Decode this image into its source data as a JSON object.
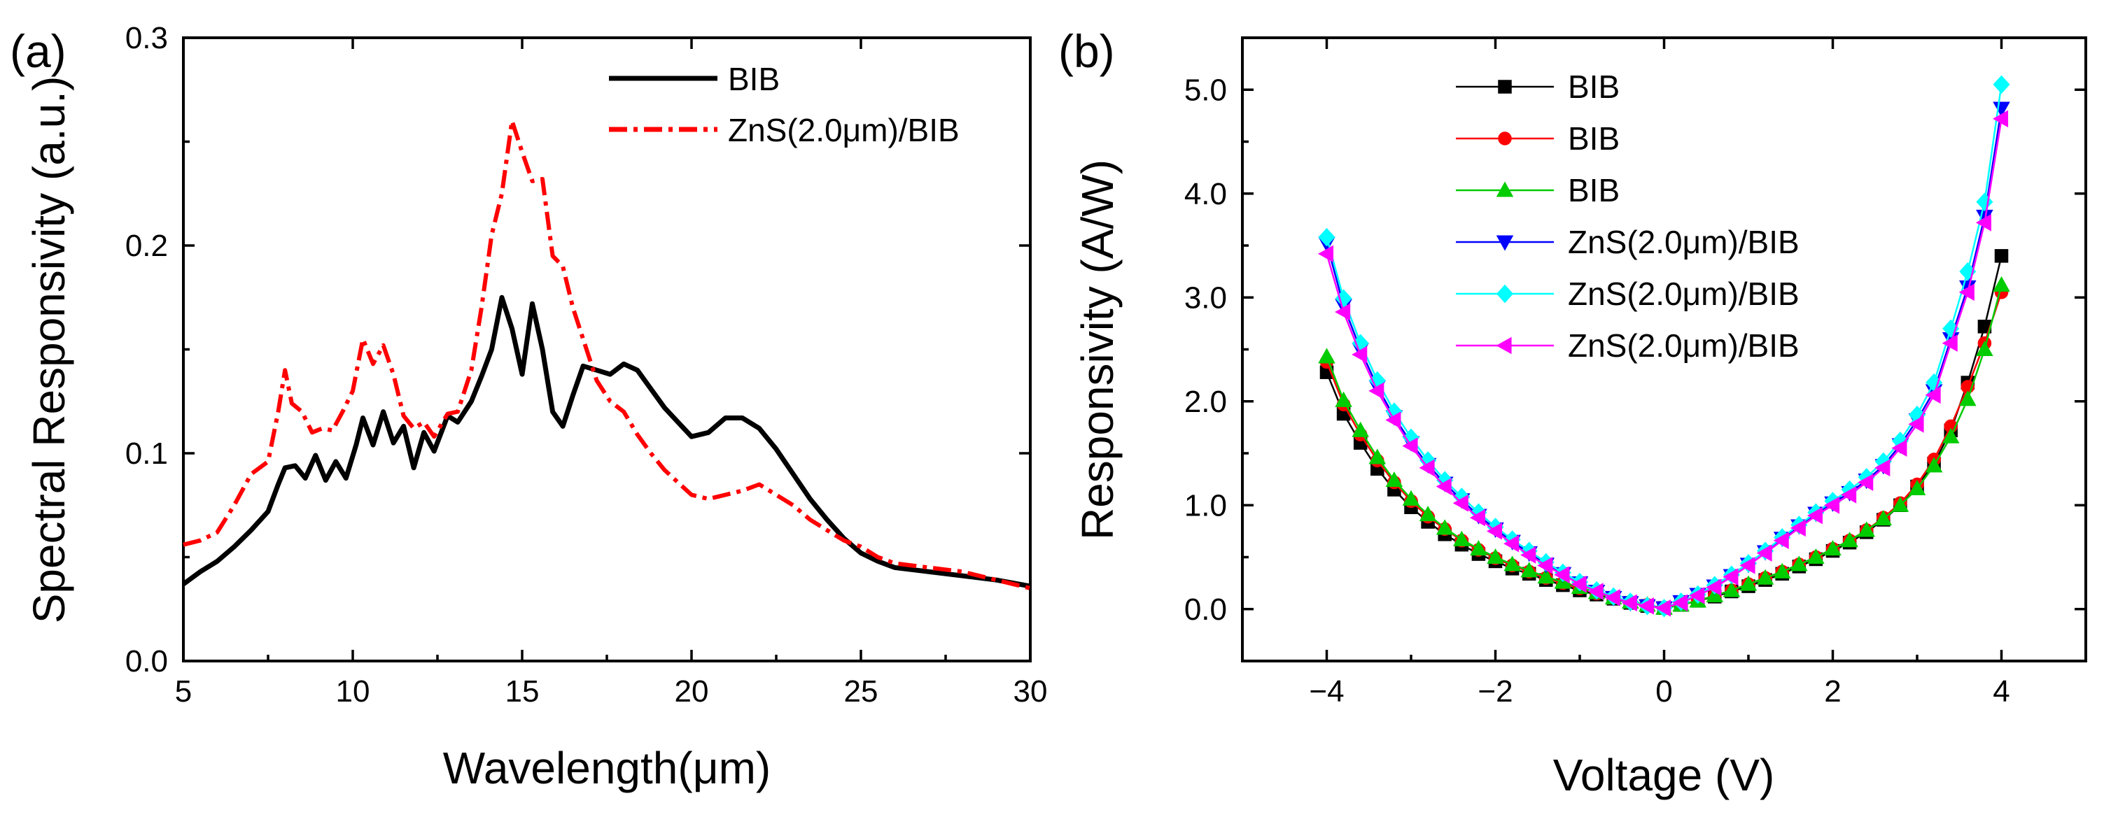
{
  "chart_data": [
    {
      "type": "line",
      "panel_label": "(a)",
      "xlabel": "Wavelength(μm)",
      "ylabel": "Spectral Responsivity (a.u.)",
      "xlim": [
        5,
        30
      ],
      "ylim": [
        0.0,
        0.3
      ],
      "xticks": [
        5,
        10,
        15,
        20,
        25,
        30
      ],
      "xtick_labels": [
        "5",
        "10",
        "15",
        "20",
        "25",
        "30"
      ],
      "yticks": [
        0.0,
        0.1,
        0.2,
        0.3
      ],
      "ytick_labels": [
        "0.0",
        "0.1",
        "0.2",
        "0.3"
      ],
      "legend_position": "top-right",
      "series": [
        {
          "name": "BIB",
          "color": "#000000",
          "style": "solid",
          "x": [
            5.0,
            5.5,
            6.0,
            6.5,
            7.0,
            7.5,
            7.8,
            8.0,
            8.3,
            8.6,
            8.9,
            9.2,
            9.5,
            9.8,
            10.1,
            10.3,
            10.6,
            10.9,
            11.2,
            11.5,
            11.8,
            12.1,
            12.4,
            12.8,
            13.1,
            13.5,
            13.8,
            14.1,
            14.4,
            14.7,
            15.0,
            15.3,
            15.6,
            15.9,
            16.2,
            16.5,
            16.8,
            17.2,
            17.6,
            18.0,
            18.4,
            18.8,
            19.2,
            19.6,
            20.0,
            20.5,
            21.0,
            21.5,
            22.0,
            22.5,
            23.0,
            23.5,
            24.0,
            24.5,
            25.0,
            25.5,
            26.0,
            27.0,
            28.0,
            29.0,
            30.0
          ],
          "values": [
            0.037,
            0.043,
            0.048,
            0.055,
            0.063,
            0.072,
            0.085,
            0.093,
            0.094,
            0.088,
            0.099,
            0.087,
            0.096,
            0.088,
            0.104,
            0.117,
            0.104,
            0.12,
            0.105,
            0.113,
            0.093,
            0.11,
            0.101,
            0.118,
            0.115,
            0.125,
            0.137,
            0.15,
            0.175,
            0.16,
            0.138,
            0.172,
            0.15,
            0.12,
            0.113,
            0.128,
            0.142,
            0.14,
            0.138,
            0.143,
            0.14,
            0.131,
            0.122,
            0.115,
            0.108,
            0.11,
            0.117,
            0.117,
            0.112,
            0.102,
            0.09,
            0.078,
            0.068,
            0.059,
            0.052,
            0.048,
            0.045,
            0.043,
            0.041,
            0.039,
            0.036
          ]
        },
        {
          "name": "ZnS(2.0μm)/BIB",
          "color": "#ff0000",
          "style": "dash-dot",
          "x": [
            5.0,
            5.5,
            6.0,
            6.5,
            7.0,
            7.5,
            7.8,
            8.0,
            8.2,
            8.5,
            8.8,
            9.1,
            9.4,
            9.7,
            10.0,
            10.3,
            10.6,
            10.9,
            11.2,
            11.5,
            11.8,
            12.1,
            12.4,
            12.8,
            13.1,
            13.5,
            13.8,
            14.1,
            14.4,
            14.7,
            15.0,
            15.3,
            15.6,
            15.9,
            16.2,
            16.5,
            16.8,
            17.2,
            17.6,
            18.0,
            18.4,
            18.8,
            19.2,
            19.6,
            20.0,
            20.5,
            21.0,
            21.5,
            22.0,
            22.5,
            23.0,
            23.5,
            24.0,
            24.5,
            25.0,
            25.5,
            26.0,
            27.0,
            28.0,
            29.0,
            30.0
          ],
          "values": [
            0.056,
            0.058,
            0.062,
            0.075,
            0.09,
            0.096,
            0.12,
            0.14,
            0.124,
            0.12,
            0.11,
            0.112,
            0.111,
            0.12,
            0.13,
            0.155,
            0.143,
            0.152,
            0.138,
            0.118,
            0.112,
            0.115,
            0.108,
            0.119,
            0.12,
            0.14,
            0.17,
            0.205,
            0.225,
            0.26,
            0.245,
            0.231,
            0.232,
            0.195,
            0.19,
            0.17,
            0.155,
            0.135,
            0.125,
            0.12,
            0.109,
            0.1,
            0.092,
            0.086,
            0.08,
            0.078,
            0.08,
            0.082,
            0.085,
            0.08,
            0.075,
            0.068,
            0.063,
            0.058,
            0.055,
            0.05,
            0.047,
            0.045,
            0.043,
            0.039,
            0.035
          ]
        }
      ]
    },
    {
      "type": "line",
      "panel_label": "(b)",
      "xlabel": "Voltage (V)",
      "ylabel": "Responsivity (A/W)",
      "xlim": [
        -5,
        5
      ],
      "ylim": [
        -0.5,
        5.5
      ],
      "xticks": [
        -4,
        -2,
        0,
        2,
        4
      ],
      "xtick_labels": [
        "−4",
        "−2",
        "0",
        "2",
        "4"
      ],
      "yticks": [
        0.0,
        1.0,
        2.0,
        3.0,
        4.0,
        5.0
      ],
      "ytick_labels": [
        "0.0",
        "1.0",
        "2.0",
        "3.0",
        "4.0",
        "5.0"
      ],
      "legend_position": "top-left",
      "x": [
        -4.0,
        -3.8,
        -3.6,
        -3.4,
        -3.2,
        -3.0,
        -2.8,
        -2.6,
        -2.4,
        -2.2,
        -2.0,
        -1.8,
        -1.6,
        -1.4,
        -1.2,
        -1.0,
        -0.8,
        -0.6,
        -0.4,
        -0.2,
        0.0,
        0.2,
        0.4,
        0.6,
        0.8,
        1.0,
        1.2,
        1.4,
        1.6,
        1.8,
        2.0,
        2.2,
        2.4,
        2.6,
        2.8,
        3.0,
        3.2,
        3.4,
        3.6,
        3.8,
        4.0
      ],
      "series": [
        {
          "name": "BIB",
          "color": "#000000",
          "marker": "square",
          "values": [
            2.28,
            1.88,
            1.6,
            1.35,
            1.15,
            0.98,
            0.84,
            0.72,
            0.62,
            0.53,
            0.46,
            0.39,
            0.34,
            0.28,
            0.23,
            0.18,
            0.14,
            0.1,
            0.06,
            0.03,
            0.01,
            0.04,
            0.08,
            0.12,
            0.17,
            0.22,
            0.28,
            0.34,
            0.41,
            0.48,
            0.56,
            0.64,
            0.74,
            0.86,
            1.0,
            1.18,
            1.4,
            1.72,
            2.18,
            2.72,
            3.4
          ]
        },
        {
          "name": "BIB",
          "color": "#ff0000",
          "marker": "circle",
          "values": [
            2.38,
            1.97,
            1.68,
            1.43,
            1.22,
            1.04,
            0.89,
            0.77,
            0.66,
            0.57,
            0.49,
            0.42,
            0.36,
            0.3,
            0.25,
            0.2,
            0.15,
            0.11,
            0.07,
            0.04,
            0.01,
            0.04,
            0.08,
            0.13,
            0.18,
            0.24,
            0.3,
            0.36,
            0.43,
            0.5,
            0.58,
            0.66,
            0.76,
            0.88,
            1.02,
            1.2,
            1.44,
            1.76,
            2.14,
            2.56,
            3.05
          ]
        },
        {
          "name": "BIB",
          "color": "#00cc00",
          "marker": "triangle-up",
          "values": [
            2.43,
            2.01,
            1.72,
            1.46,
            1.24,
            1.06,
            0.91,
            0.78,
            0.67,
            0.58,
            0.5,
            0.43,
            0.37,
            0.31,
            0.26,
            0.21,
            0.16,
            0.11,
            0.07,
            0.04,
            0.01,
            0.04,
            0.08,
            0.13,
            0.18,
            0.24,
            0.3,
            0.36,
            0.43,
            0.5,
            0.58,
            0.66,
            0.76,
            0.87,
            1.0,
            1.16,
            1.38,
            1.66,
            2.02,
            2.5,
            3.12
          ]
        },
        {
          "name": "ZnS(2.0μm)/BIB",
          "color": "#0000ff",
          "marker": "triangle-down",
          "values": [
            3.52,
            2.92,
            2.5,
            2.14,
            1.85,
            1.6,
            1.39,
            1.21,
            1.05,
            0.9,
            0.77,
            0.65,
            0.54,
            0.43,
            0.34,
            0.25,
            0.17,
            0.11,
            0.06,
            0.03,
            0.01,
            0.07,
            0.14,
            0.22,
            0.32,
            0.43,
            0.55,
            0.68,
            0.8,
            0.92,
            1.02,
            1.12,
            1.24,
            1.38,
            1.58,
            1.82,
            2.1,
            2.6,
            3.1,
            3.78,
            4.82
          ]
        },
        {
          "name": "ZnS(2.0μm)/BIB",
          "color": "#00ffff",
          "marker": "diamond",
          "values": [
            3.58,
            2.99,
            2.56,
            2.2,
            1.9,
            1.65,
            1.43,
            1.24,
            1.08,
            0.93,
            0.79,
            0.67,
            0.56,
            0.45,
            0.35,
            0.26,
            0.18,
            0.12,
            0.07,
            0.03,
            0.01,
            0.07,
            0.14,
            0.23,
            0.33,
            0.44,
            0.56,
            0.69,
            0.81,
            0.93,
            1.04,
            1.15,
            1.27,
            1.42,
            1.62,
            1.87,
            2.18,
            2.7,
            3.25,
            3.92,
            5.05
          ]
        },
        {
          "name": "ZnS(2.0μm)/BIB",
          "color": "#ff00ff",
          "marker": "triangle-left",
          "values": [
            3.42,
            2.86,
            2.45,
            2.1,
            1.82,
            1.57,
            1.36,
            1.18,
            1.02,
            0.88,
            0.75,
            0.63,
            0.52,
            0.42,
            0.33,
            0.24,
            0.17,
            0.11,
            0.06,
            0.03,
            0.01,
            0.06,
            0.13,
            0.21,
            0.31,
            0.42,
            0.54,
            0.66,
            0.78,
            0.9,
            1.0,
            1.1,
            1.22,
            1.36,
            1.55,
            1.78,
            2.06,
            2.56,
            3.05,
            3.72,
            4.72
          ]
        }
      ]
    }
  ]
}
